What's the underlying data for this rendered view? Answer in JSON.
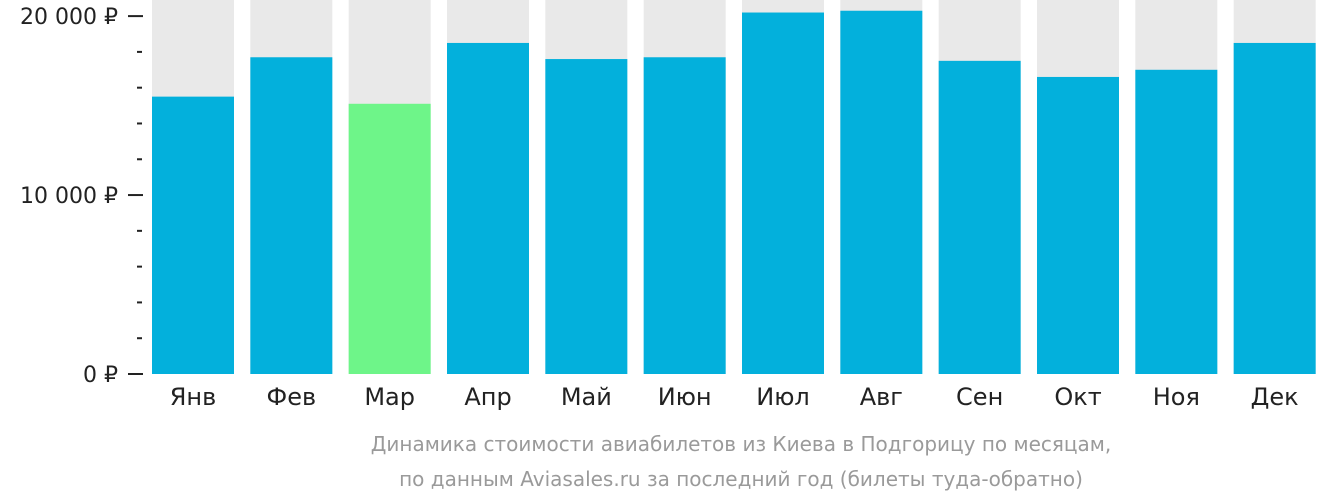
{
  "chart_data": {
    "type": "bar",
    "categories": [
      "Янв",
      "Фев",
      "Мар",
      "Апр",
      "Май",
      "Июн",
      "Июл",
      "Авг",
      "Сен",
      "Окт",
      "Ноя",
      "Дек"
    ],
    "values": [
      15500,
      17700,
      15100,
      18500,
      17600,
      17700,
      20200,
      20300,
      17500,
      16600,
      17000,
      18500
    ],
    "highlight_index": 2,
    "ylim": [
      0,
      20900
    ],
    "yticks": [
      {
        "value": 0,
        "label": "0 ₽"
      },
      {
        "value": 10000,
        "label": "10 000 ₽"
      },
      {
        "value": 20000,
        "label": "20 000 ₽"
      }
    ],
    "minor_tick_step": 2000,
    "colors": {
      "bar": "#03b0dc",
      "highlight": "#6ef589",
      "background_bar": "#e9e9e9",
      "axis": "#222222"
    },
    "caption": [
      "Динамика стоимости авиабилетов из Киева в Подгорицу по месяцам,",
      "по данным Aviasales.ru за последний год (билеты туда-обратно)"
    ]
  }
}
